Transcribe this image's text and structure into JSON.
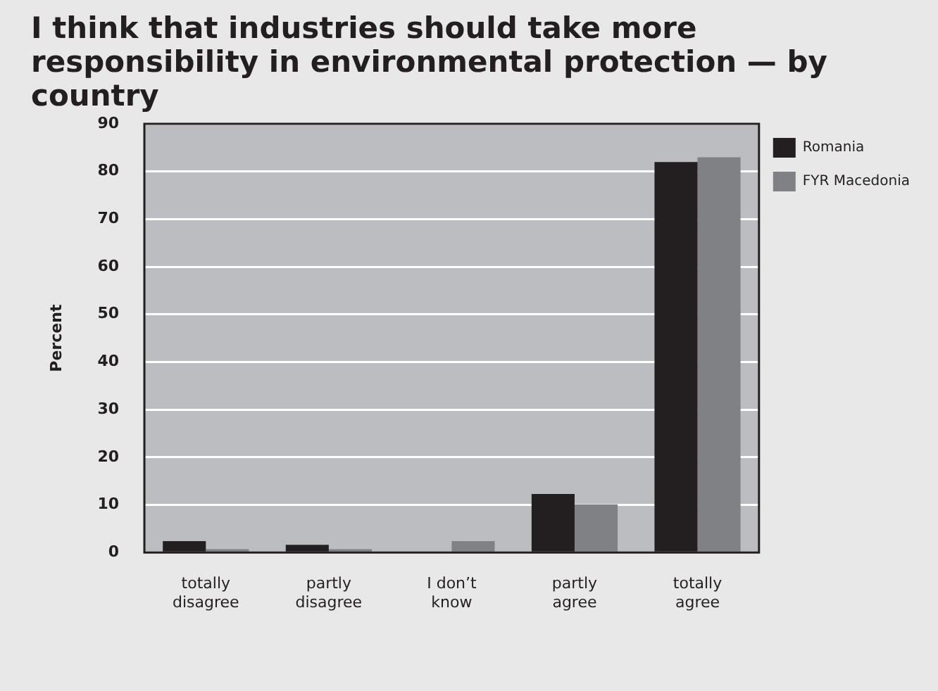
{
  "chart_data": {
    "type": "bar",
    "title": "I think that industries should take more responsibility in environmental protection — by country",
    "ylabel": "Percent",
    "categories": [
      "totally disagree",
      "partly disagree",
      "I don’t know",
      "partly agree",
      "totally agree"
    ],
    "series": [
      {
        "name": "Romania",
        "color": "#231f20",
        "values": [
          2.4,
          1.6,
          0,
          12.3,
          82
        ]
      },
      {
        "name": "FYR Macedonia",
        "color": "#808184",
        "values": [
          0.7,
          0.7,
          2.4,
          10.1,
          83
        ]
      }
    ],
    "ylim": [
      0,
      90
    ],
    "yticks": [
      0,
      10,
      20,
      30,
      40,
      50,
      60,
      70,
      80,
      90
    ],
    "grid": "y",
    "legend": "top right"
  }
}
